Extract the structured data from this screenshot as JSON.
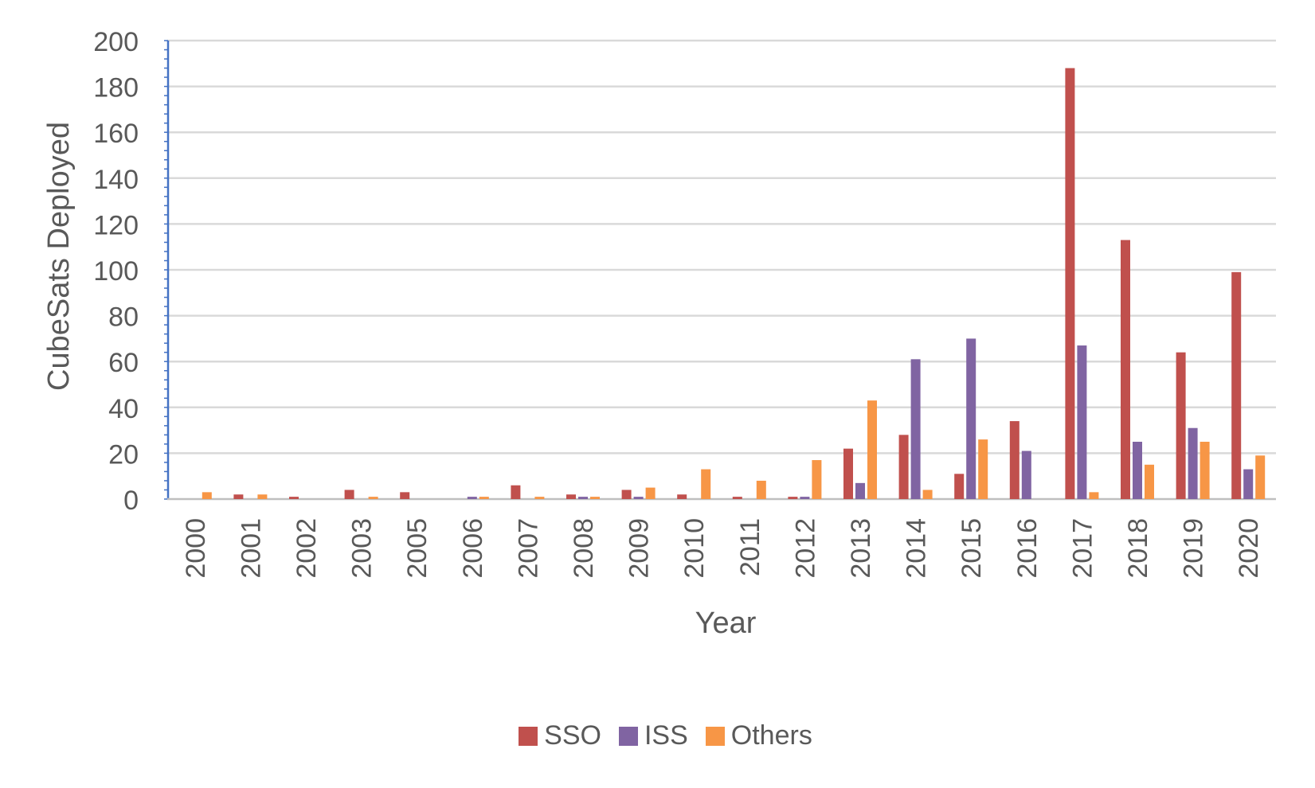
{
  "chart_data": {
    "type": "bar",
    "title": "",
    "xlabel": "Year",
    "ylabel": "CubeSats Deployed",
    "ylim": [
      0,
      200
    ],
    "yticks": [
      0,
      20,
      40,
      60,
      80,
      100,
      120,
      140,
      160,
      180,
      200
    ],
    "grid": true,
    "legend_position": "bottom",
    "categories": [
      "2000",
      "2001",
      "2002",
      "2003",
      "2005",
      "2006",
      "2007",
      "2008",
      "2009",
      "2010",
      "2011",
      "2012",
      "2013",
      "2014",
      "2015",
      "2016",
      "2017",
      "2018",
      "2019",
      "2020"
    ],
    "series": [
      {
        "name": "SSO",
        "color": "#C0504D",
        "values": [
          0,
          2,
          1,
          4,
          3,
          0,
          6,
          2,
          4,
          2,
          1,
          1,
          22,
          28,
          11,
          34,
          188,
          113,
          64,
          99
        ]
      },
      {
        "name": "ISS",
        "color": "#8064A2",
        "values": [
          0,
          0,
          0,
          0,
          0,
          1,
          0,
          1,
          1,
          0,
          0,
          1,
          7,
          61,
          70,
          21,
          67,
          25,
          31,
          13
        ]
      },
      {
        "name": "Others",
        "color": "#F79646",
        "values": [
          3,
          2,
          0,
          1,
          0,
          1,
          1,
          1,
          5,
          13,
          8,
          17,
          43,
          4,
          26,
          0,
          3,
          15,
          25,
          19
        ]
      }
    ]
  }
}
